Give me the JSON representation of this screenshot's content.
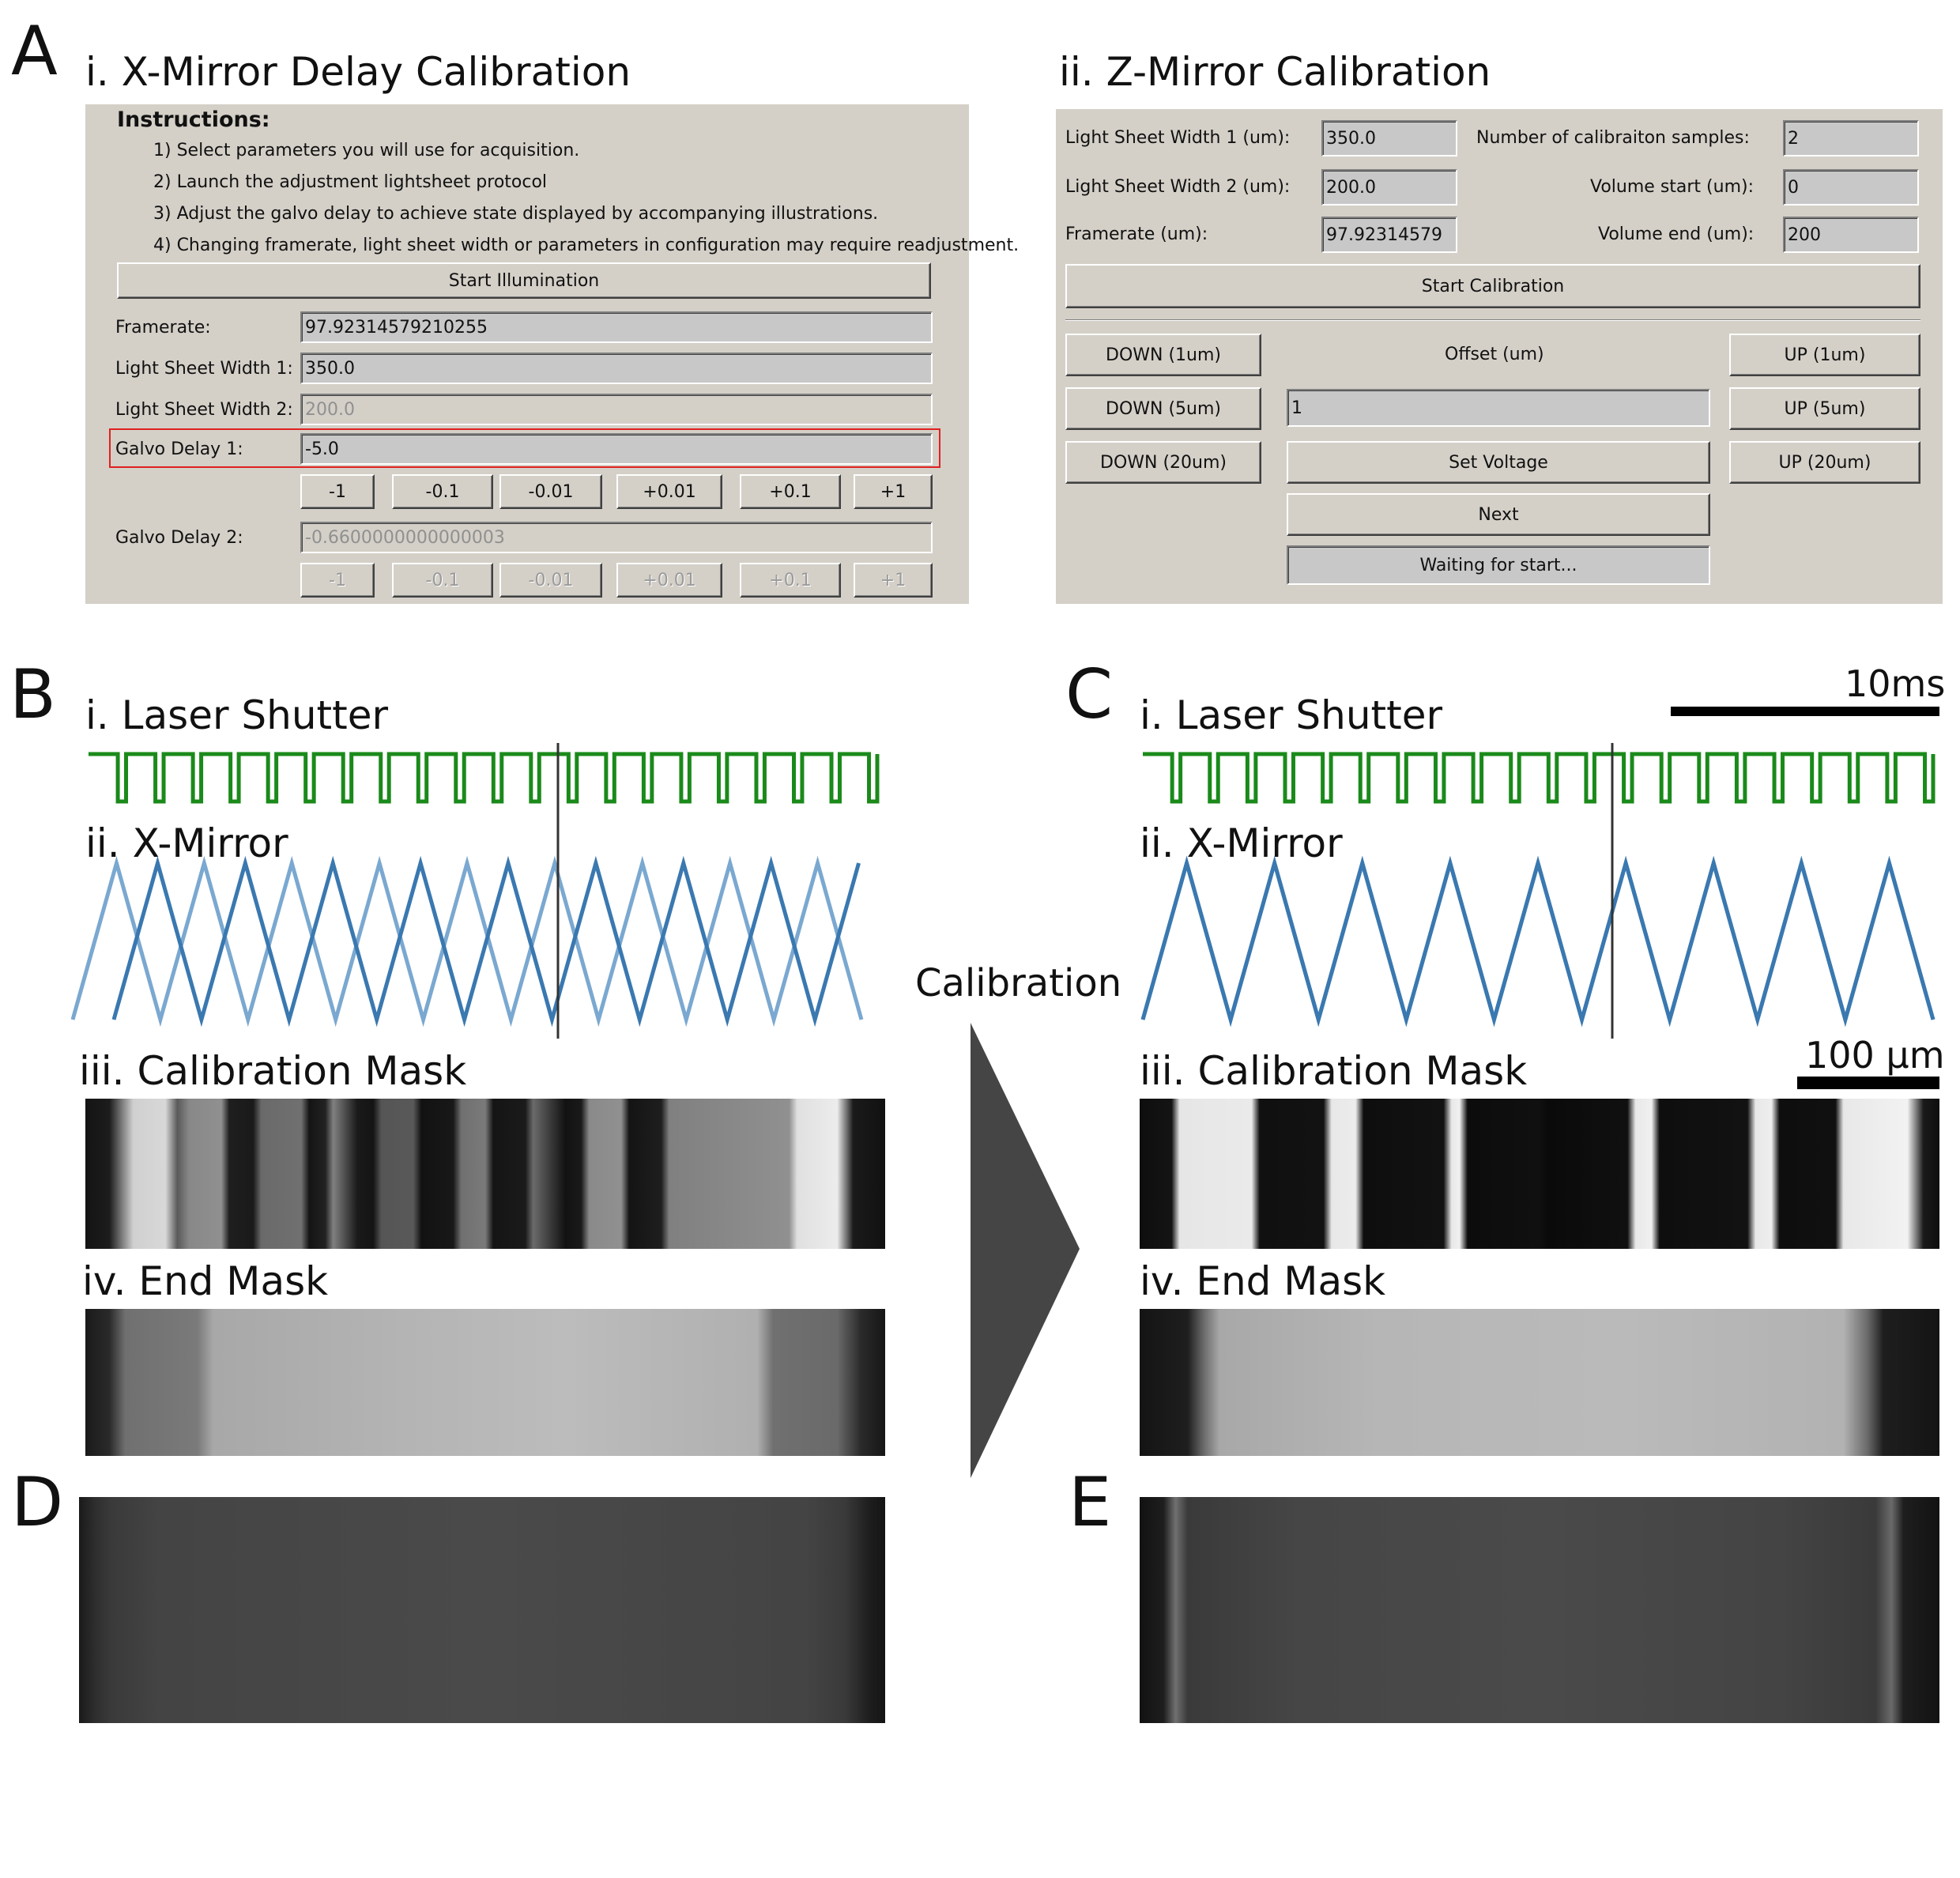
{
  "panels": {
    "a": "A",
    "b": "B",
    "c": "C",
    "d": "D",
    "e": "E"
  },
  "panel_a": {
    "left_title": "i. X-Mirror Delay Calibration",
    "right_title": "ii. Z-Mirror Calibration"
  },
  "xmirror_dialog": {
    "instructions_heading": "Instructions:",
    "instructions": [
      "1) Select parameters you will use for acquisition.",
      "2) Launch the adjustment lightsheet protocol",
      "3) Adjust the galvo delay to achieve  state displayed by accompanying illustrations.",
      "4) Changing framerate, light sheet width or parameters in configuration may require readjustment."
    ],
    "start_button": "Start Illumination",
    "framerate_label": "Framerate:",
    "framerate_value": "97.92314579210255",
    "width1_label": "Light Sheet Width 1:",
    "width1_value": "350.0",
    "width2_label": "Light Sheet Width 2:",
    "width2_value": "200.0",
    "delay1_label": "Galvo Delay 1:",
    "delay1_value": "-5.0",
    "delay2_label": "Galvo Delay 2:",
    "delay2_value": "-0.6600000000000003",
    "step_buttons": [
      "-1",
      "-0.1",
      "-0.01",
      "+0.01",
      "+0.1",
      "+1"
    ],
    "highlight_color": "#e02020"
  },
  "zmirror_dialog": {
    "width1_label": "Light Sheet Width 1 (um):",
    "width1_value": "350.0",
    "width2_label": "Light Sheet Width 2 (um):",
    "width2_value": "200.0",
    "framerate_label": "Framerate (um):",
    "framerate_value": "97.92314579",
    "samples_label": "Number of calibraiton samples:",
    "samples_value": "2",
    "vol_start_label": "Volume start (um):",
    "vol_start_value": "0",
    "vol_end_label": "Volume end (um):",
    "vol_end_value": "200",
    "start_calibration": "Start Calibration",
    "down_1": "DOWN (1um)",
    "down_5": "DOWN (5um)",
    "down_20": "DOWN (20um)",
    "offset_label": "Offset (um)",
    "offset_value": "1",
    "up_1": "UP (1um)",
    "up_5": "UP (5um)",
    "up_20": "UP (20um)",
    "set_voltage": "Set Voltage",
    "next": "Next",
    "status": "Waiting for start..."
  },
  "panel_b": {
    "laser": "i. Laser Shutter",
    "xmirror": "ii. X-Mirror",
    "calmask": "iii. Calibration Mask",
    "endmask": "iv. End Mask"
  },
  "panel_c": {
    "laser": "i. Laser Shutter",
    "xmirror": "ii. X-Mirror",
    "calmask": "iii. Calibration Mask",
    "endmask": "iv. End Mask",
    "time_scale": "10ms",
    "space_scale": "100 µm"
  },
  "calibration_arrow_label": "Calibration",
  "colors": {
    "laser_green": "#1a8a1a",
    "mirror_dark": "#3a78b0",
    "mirror_light": "#7aa8d0",
    "arrow": "#454545"
  }
}
